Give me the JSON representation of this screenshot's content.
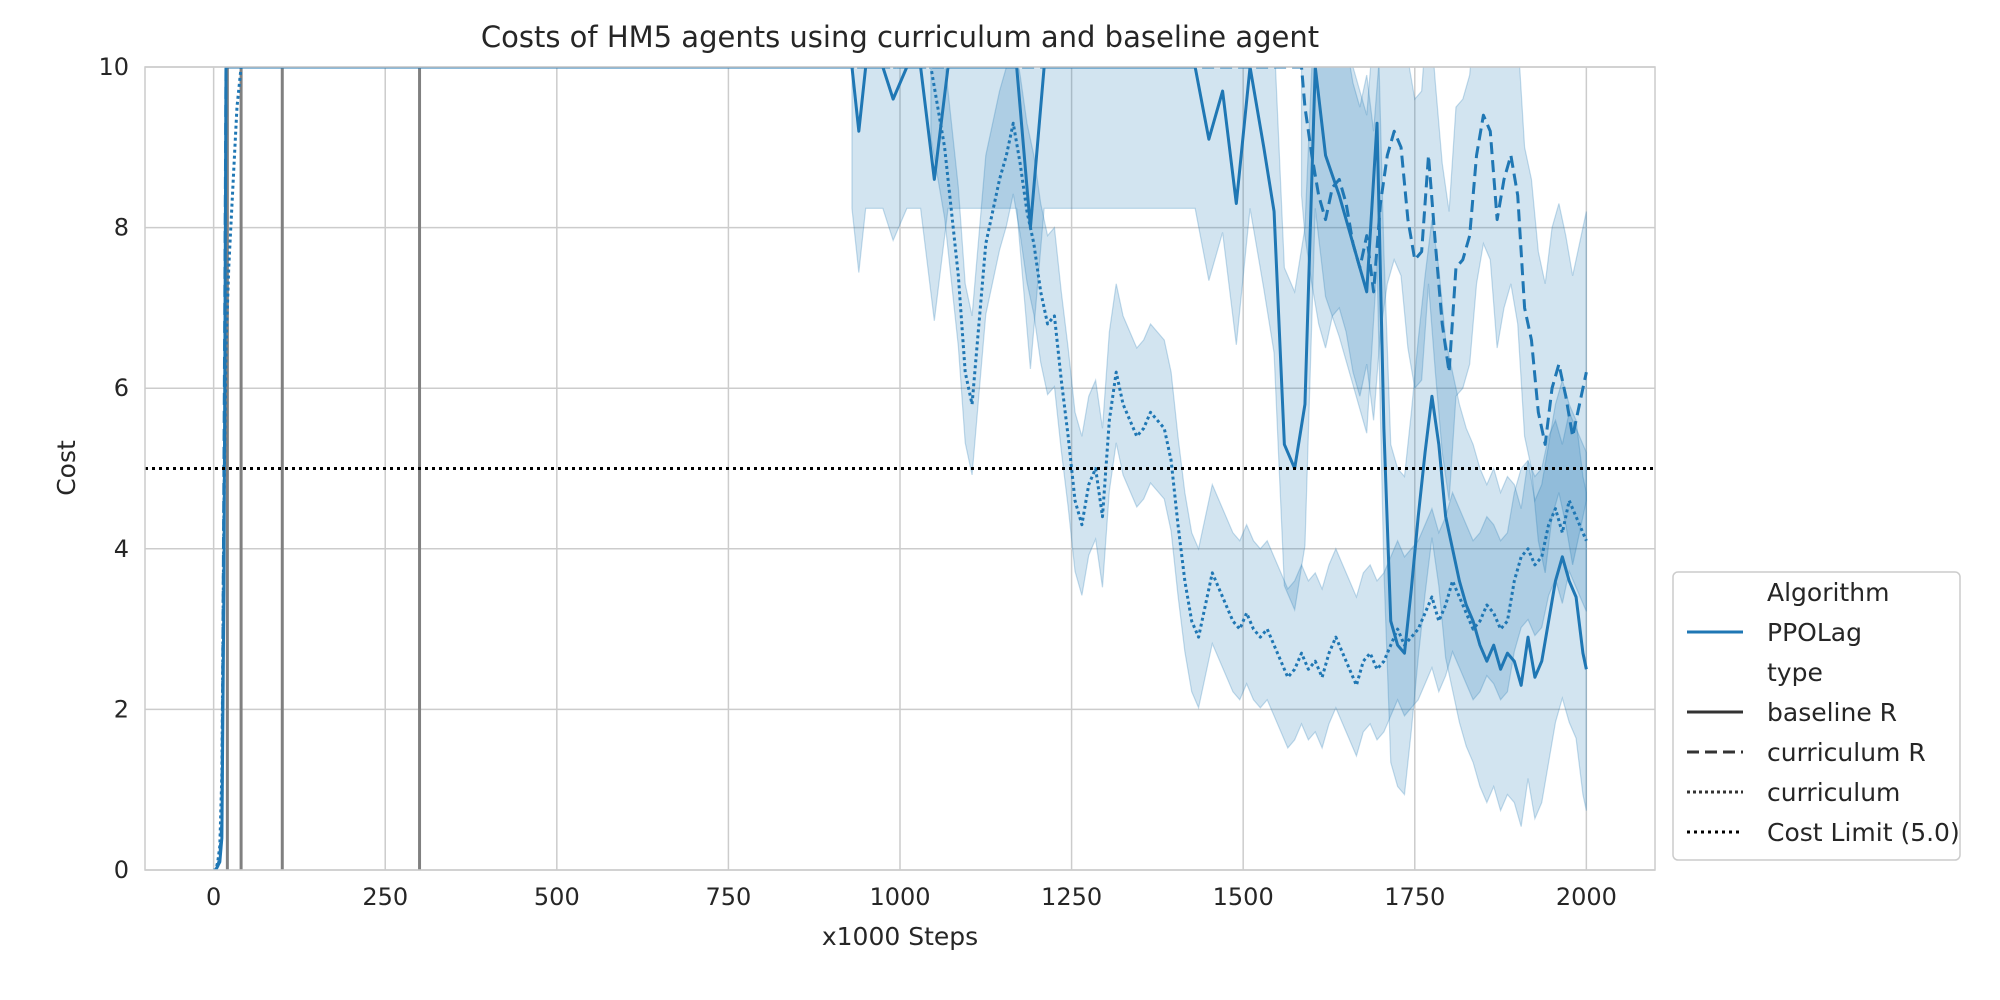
{
  "chart_data": {
    "type": "line",
    "title": "Costs of HM5 agents using curriculum and baseline agent",
    "xlabel": "x1000 Steps",
    "ylabel": "Cost",
    "xlim": [
      -100,
      2100
    ],
    "ylim": [
      0,
      10
    ],
    "xticks": [
      "0",
      "250",
      "500",
      "750",
      "1000",
      "1250",
      "1500",
      "1750",
      "2000"
    ],
    "yticks": [
      "0",
      "2",
      "4",
      "6",
      "8",
      "10"
    ],
    "grid": true,
    "legend_position": "outside-right-bottom",
    "colors": {
      "series": "#1f77b4",
      "band": "#1f77b4",
      "limit": "#000000",
      "vlines": "#808080"
    },
    "legend": [
      {
        "label": "Algorithm",
        "style": "header"
      },
      {
        "label": "PPOLag",
        "style": "solid-blue"
      },
      {
        "label": "type",
        "style": "header"
      },
      {
        "label": "baseline R",
        "style": "solid"
      },
      {
        "label": "curriculum R",
        "style": "dashed"
      },
      {
        "label": "curriculum",
        "style": "dotted"
      },
      {
        "label": "Cost Limit (5.0)",
        "style": "dotted-limit"
      }
    ],
    "cost_limit": 5.0,
    "vertical_markers": [
      20,
      40,
      100,
      300
    ],
    "series": [
      {
        "name": "baseline R",
        "dash": "solid",
        "x": [
          0,
          3,
          6,
          9,
          12,
          15,
          18,
          20,
          24,
          30,
          36,
          40,
          930,
          940,
          950,
          960,
          975,
          990,
          1010,
          1030,
          1050,
          1070,
          1090,
          1110,
          1130,
          1150,
          1170,
          1190,
          1210,
          1230,
          1250,
          1270,
          1290,
          1310,
          1330,
          1350,
          1370,
          1390,
          1410,
          1430,
          1450,
          1470,
          1490,
          1510,
          1530,
          1545,
          1560,
          1575,
          1590,
          1605,
          1620,
          1640,
          1660,
          1680,
          1695,
          1705,
          1715,
          1725,
          1735,
          1745,
          1755,
          1765,
          1775,
          1785,
          1795,
          1805,
          1815,
          1825,
          1835,
          1845,
          1855,
          1865,
          1875,
          1885,
          1895,
          1905,
          1915,
          1925,
          1935,
          1945,
          1955,
          1965,
          1975,
          1985,
          1995,
          2000
        ],
        "y": [
          0.0,
          0.0,
          0.05,
          0.1,
          0.4,
          3.5,
          10.0,
          10.0,
          10.0,
          10.0,
          10.0,
          10.0,
          10.0,
          9.2,
          10.0,
          10.0,
          10.0,
          9.6,
          10.0,
          10.0,
          8.6,
          10.0,
          10.0,
          10.0,
          10.0,
          10.0,
          10.0,
          8.0,
          10.0,
          10.0,
          10.0,
          10.0,
          10.0,
          10.0,
          10.0,
          10.0,
          10.0,
          10.0,
          10.0,
          10.0,
          9.1,
          9.7,
          8.3,
          10.0,
          9.0,
          8.2,
          5.3,
          5.0,
          5.8,
          10.0,
          8.9,
          8.4,
          7.8,
          7.2,
          9.3,
          5.5,
          3.1,
          2.8,
          2.7,
          3.5,
          4.4,
          5.2,
          5.9,
          5.3,
          4.4,
          4.0,
          3.6,
          3.3,
          3.1,
          2.8,
          2.6,
          2.8,
          2.5,
          2.7,
          2.6,
          2.3,
          2.9,
          2.4,
          2.6,
          3.1,
          3.6,
          3.9,
          3.6,
          3.4,
          2.7,
          2.5
        ]
      },
      {
        "name": "curriculum R",
        "dash": "dashed",
        "x": [
          0,
          3,
          6,
          9,
          12,
          15,
          18,
          22,
          28,
          40,
          1585,
          1590,
          1600,
          1610,
          1620,
          1630,
          1640,
          1650,
          1660,
          1670,
          1680,
          1690,
          1700,
          1710,
          1720,
          1730,
          1740,
          1750,
          1760,
          1770,
          1780,
          1790,
          1800,
          1810,
          1820,
          1830,
          1840,
          1850,
          1860,
          1870,
          1880,
          1890,
          1900,
          1910,
          1920,
          1930,
          1940,
          1950,
          1960,
          1970,
          1980,
          1990,
          2000
        ],
        "y": [
          0.0,
          0.0,
          0.05,
          0.15,
          0.6,
          5.0,
          10.0,
          10.0,
          10.0,
          10.0,
          10.0,
          9.5,
          8.9,
          8.4,
          8.1,
          8.5,
          8.6,
          8.3,
          7.8,
          7.5,
          7.9,
          7.2,
          8.3,
          8.9,
          9.2,
          9.0,
          8.1,
          7.6,
          7.7,
          8.9,
          7.8,
          6.8,
          6.2,
          7.5,
          7.6,
          7.9,
          8.9,
          9.4,
          9.2,
          8.1,
          8.6,
          8.9,
          8.4,
          7.0,
          6.6,
          5.7,
          5.3,
          6.0,
          6.3,
          5.9,
          5.4,
          5.8,
          6.2
        ]
      },
      {
        "name": "curriculum",
        "dash": "dotted",
        "x": [
          0,
          3,
          6,
          9,
          12,
          15,
          18,
          22,
          28,
          34,
          40,
          1045,
          1055,
          1065,
          1075,
          1085,
          1095,
          1105,
          1115,
          1125,
          1135,
          1145,
          1155,
          1165,
          1175,
          1185,
          1195,
          1205,
          1215,
          1225,
          1235,
          1245,
          1255,
          1265,
          1275,
          1285,
          1295,
          1305,
          1315,
          1325,
          1335,
          1345,
          1355,
          1365,
          1375,
          1385,
          1395,
          1405,
          1415,
          1425,
          1435,
          1445,
          1455,
          1465,
          1475,
          1485,
          1495,
          1505,
          1515,
          1525,
          1535,
          1545,
          1555,
          1565,
          1575,
          1585,
          1595,
          1605,
          1615,
          1625,
          1635,
          1645,
          1655,
          1665,
          1675,
          1685,
          1695,
          1705,
          1715,
          1725,
          1735,
          1745,
          1755,
          1765,
          1775,
          1785,
          1795,
          1805,
          1815,
          1825,
          1835,
          1845,
          1855,
          1865,
          1875,
          1885,
          1895,
          1905,
          1915,
          1925,
          1935,
          1945,
          1955,
          1965,
          1975,
          1985,
          1995,
          2000
        ],
        "y": [
          0.0,
          0.0,
          0.1,
          0.3,
          1.2,
          4.5,
          6.5,
          7.5,
          8.5,
          9.5,
          10.0,
          10.0,
          9.5,
          9.0,
          8.2,
          7.4,
          6.2,
          5.8,
          6.8,
          7.8,
          8.2,
          8.6,
          8.9,
          9.3,
          8.8,
          8.2,
          7.8,
          7.2,
          6.8,
          6.9,
          6.1,
          5.4,
          4.6,
          4.3,
          4.8,
          5.0,
          4.4,
          5.6,
          6.2,
          5.8,
          5.6,
          5.4,
          5.5,
          5.7,
          5.6,
          5.5,
          5.1,
          4.3,
          3.6,
          3.1,
          2.9,
          3.3,
          3.7,
          3.5,
          3.3,
          3.1,
          3.0,
          3.2,
          3.0,
          2.9,
          3.0,
          2.8,
          2.6,
          2.4,
          2.5,
          2.7,
          2.5,
          2.6,
          2.4,
          2.7,
          2.9,
          2.7,
          2.5,
          2.3,
          2.6,
          2.7,
          2.5,
          2.6,
          2.8,
          3.0,
          2.8,
          2.9,
          3.0,
          3.2,
          3.4,
          3.1,
          3.3,
          3.6,
          3.4,
          3.2,
          3.0,
          3.1,
          3.3,
          3.2,
          3.0,
          3.1,
          3.6,
          3.9,
          4.0,
          3.8,
          3.9,
          4.3,
          4.5,
          4.2,
          4.6,
          4.4,
          4.2,
          4.1
        ]
      }
    ]
  }
}
